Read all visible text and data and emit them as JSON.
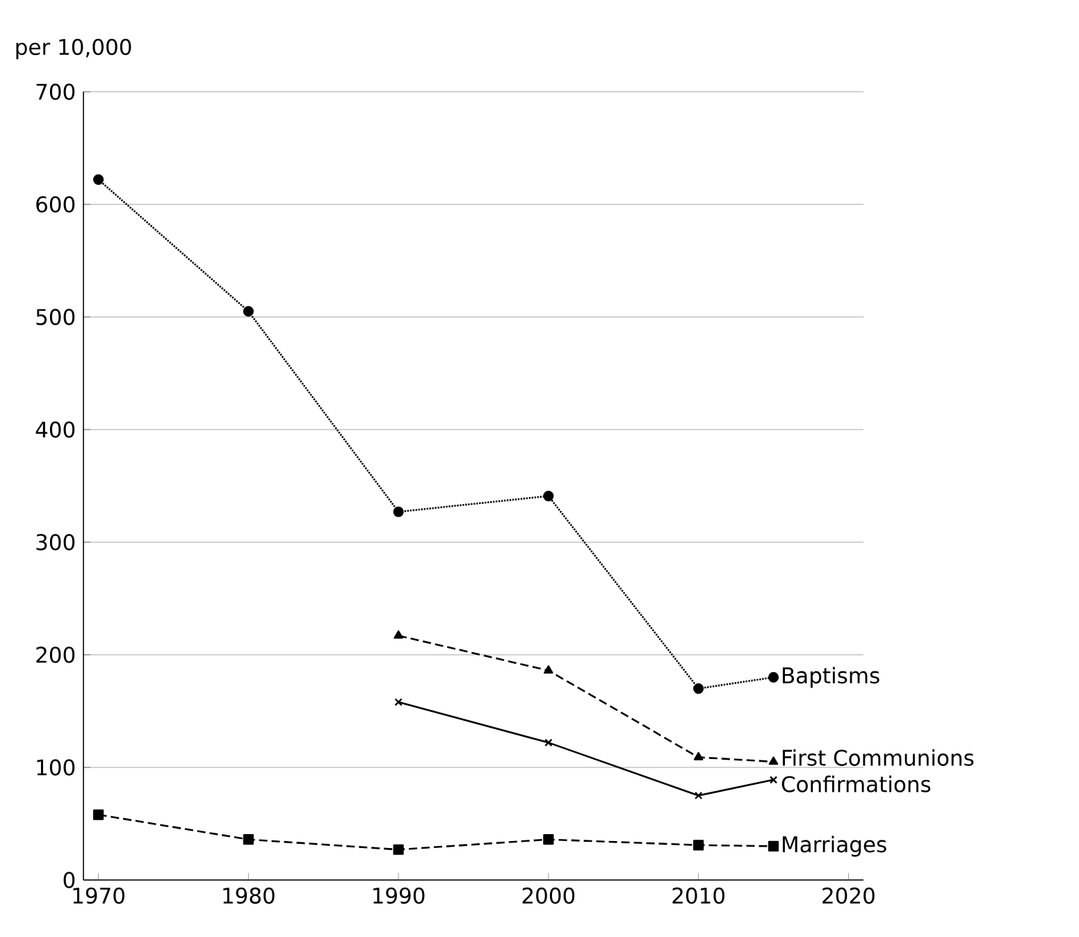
{
  "chart_data": {
    "type": "line",
    "ylabel": "per 10,000",
    "x": [
      1970,
      1980,
      1990,
      2000,
      2010,
      2015
    ],
    "xlim": [
      1969,
      2021
    ],
    "ylim": [
      0,
      700
    ],
    "xticks": [
      1970,
      1980,
      1990,
      2000,
      2010,
      2020
    ],
    "yticks": [
      0,
      100,
      200,
      300,
      400,
      500,
      600,
      700
    ],
    "grid": "y",
    "series": [
      {
        "name": "Baptisms",
        "color": "#000000",
        "marker": "circle",
        "line_style": "dotted",
        "values": [
          622,
          505,
          327,
          341,
          170,
          180
        ]
      },
      {
        "name": "First Communions",
        "color": "#000000",
        "marker": "triangle",
        "line_style": "dashed",
        "values": [
          null,
          null,
          217,
          186,
          109,
          105
        ]
      },
      {
        "name": "Confirmations",
        "color": "#000000",
        "marker": "cross",
        "line_style": "solid",
        "values": [
          null,
          null,
          158,
          122,
          75,
          89
        ]
      },
      {
        "name": "Marriages",
        "color": "#000000",
        "marker": "square",
        "line_style": "dashed",
        "values": [
          58,
          36,
          27,
          36,
          31,
          30
        ]
      }
    ]
  }
}
